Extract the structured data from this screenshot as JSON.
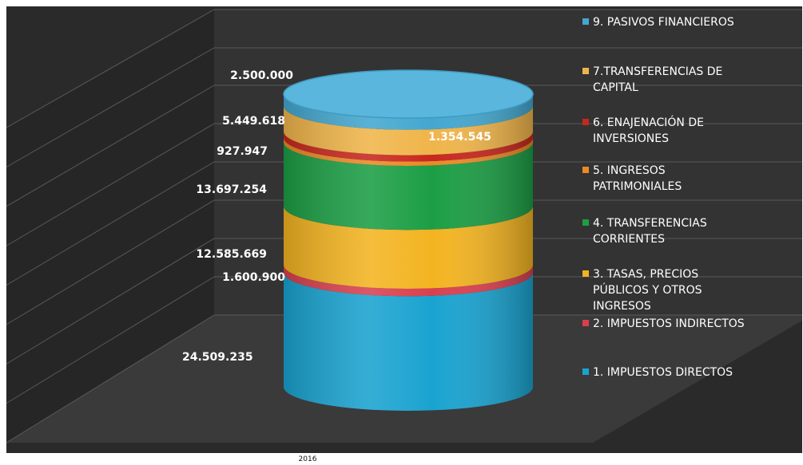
{
  "chart_data": {
    "type": "bar",
    "variant": "3d stacked cylinder",
    "categories": [
      "2016"
    ],
    "series": [
      {
        "name": "1. IMPUESTOS DIRECTOS",
        "values": [
          24509235
        ],
        "label": "24.509.235",
        "color": "#1aa3d0"
      },
      {
        "name": "2. IMPUESTOS INDIRECTOS",
        "values": [
          1600900
        ],
        "label": "1.600.900",
        "color": "#d9404f"
      },
      {
        "name": "3. TASAS, PRECIOS PÚBLICOS Y OTROS INGRESOS",
        "values": [
          12585669
        ],
        "label": "12.585.669",
        "color": "#f3b421"
      },
      {
        "name": "4. TRANSFERENCIAS CORRIENTES",
        "values": [
          13697254
        ],
        "label": "13.697.254",
        "color": "#1c9e45"
      },
      {
        "name": "5. INGRESOS PATRIMONIALES",
        "values": [
          927947
        ],
        "label": "927.947",
        "color": "#e98a26"
      },
      {
        "name": "6. ENAJENACIÓN DE INVERSIONES",
        "values": [
          1354545
        ],
        "label": "1.354.545",
        "color": "#c8271d"
      },
      {
        "name": "7.TRANSFERENCIAS DE CAPITAL",
        "values": [
          5449618
        ],
        "label": "5.449.618",
        "color": "#f0b54a"
      },
      {
        "name": "9. PASIVOS FINANCIEROS",
        "values": [
          2500000
        ],
        "label": "2.500.000",
        "color": "#44a7cf"
      }
    ],
    "legend": {
      "position": "right",
      "entries": [
        {
          "lines": [
            "9. PASIVOS FINANCIEROS"
          ],
          "color": "#44a7cf"
        },
        {
          "lines": [
            "7.TRANSFERENCIAS DE",
            "CAPITAL"
          ],
          "color": "#f0b54a"
        },
        {
          "lines": [
            "6. ENAJENACIÓN DE",
            "INVERSIONES"
          ],
          "color": "#c8271d"
        },
        {
          "lines": [
            "5. INGRESOS",
            "PATRIMONIALES"
          ],
          "color": "#e98a26"
        },
        {
          "lines": [
            "4. TRANSFERENCIAS",
            "CORRIENTES"
          ],
          "color": "#1c9e45"
        },
        {
          "lines": [
            "3. TASAS, PRECIOS",
            "PÚBLICOS Y OTROS",
            "INGRESOS"
          ],
          "color": "#f3b421"
        },
        {
          "lines": [
            "2. IMPUESTOS INDIRECTOS"
          ],
          "color": "#d9404f"
        },
        {
          "lines": [
            "1. IMPUESTOS DIRECTOS"
          ],
          "color": "#1aa3d0"
        }
      ]
    },
    "xlabel": "",
    "ylabel": "",
    "title": "",
    "grid": true,
    "background": "#2a2a2a",
    "text_color": "#ffffff"
  }
}
